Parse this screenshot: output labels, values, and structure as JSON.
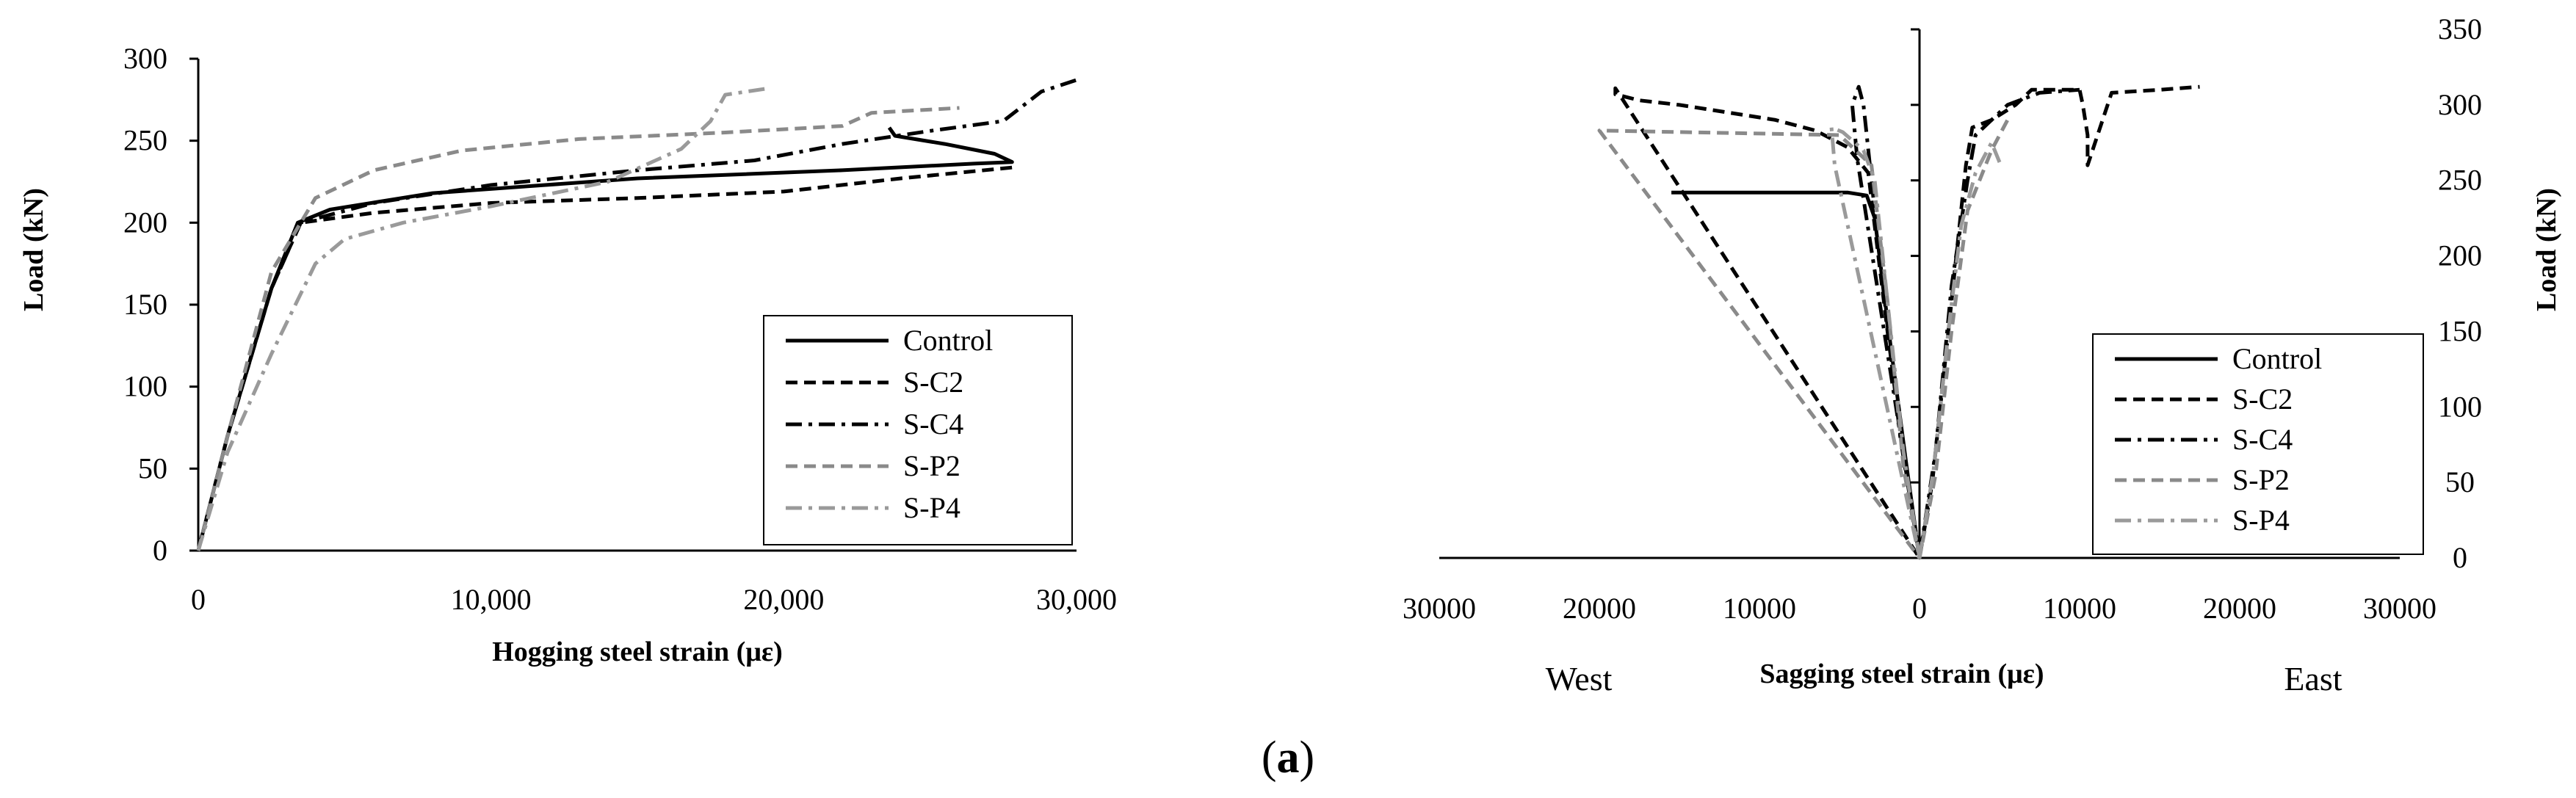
{
  "caption": {
    "open": "(",
    "letter": "a",
    "close": ")"
  },
  "chart_data": [
    {
      "type": "line",
      "title": "",
      "xlabel": "Hogging steel strain (με)",
      "ylabel": "Load (kN)",
      "xlim": [
        0,
        30000
      ],
      "ylim": [
        0,
        300
      ],
      "xticks": [
        "0",
        "10,000",
        "20,000",
        "30,000"
      ],
      "yticks": [
        "0",
        "50",
        "100",
        "150",
        "200",
        "250",
        "300"
      ],
      "grid": false,
      "legend_position": "bottom-right",
      "series": [
        {
          "name": "Control",
          "style": "solid",
          "color": "#000000",
          "x": [
            0,
            1000,
            2500,
            3400,
            4500,
            8000,
            15000,
            22000,
            26500,
            27800,
            27200,
            25500,
            23800,
            23600
          ],
          "y": [
            0,
            70,
            160,
            200,
            208,
            218,
            227,
            232,
            236,
            237,
            242,
            248,
            253,
            258
          ]
        },
        {
          "name": "S-C2",
          "style": "dashed",
          "color": "#000000",
          "x": [
            0,
            1000,
            2500,
            3500,
            6000,
            10000,
            15000,
            20000,
            24000,
            28000
          ],
          "y": [
            0,
            70,
            160,
            200,
            206,
            212,
            215,
            219,
            227,
            234
          ]
        },
        {
          "name": "S-C4",
          "style": "dashdot",
          "color": "#000000",
          "x": [
            0,
            1000,
            2500,
            3500,
            6000,
            10000,
            15000,
            19000,
            22000,
            25000,
            27500,
            28800,
            30000
          ],
          "y": [
            0,
            70,
            160,
            200,
            212,
            223,
            232,
            238,
            248,
            256,
            262,
            280,
            287
          ]
        },
        {
          "name": "S-P2",
          "style": "dashed",
          "color": "#8a8a8a",
          "x": [
            0,
            1000,
            2500,
            4000,
            6000,
            9000,
            13000,
            18000,
            22000,
            23000,
            26000
          ],
          "y": [
            0,
            70,
            170,
            215,
            232,
            244,
            251,
            255,
            259,
            267,
            270
          ]
        },
        {
          "name": "S-P4",
          "style": "dashdot",
          "color": "#9a9a9a",
          "x": [
            0,
            1000,
            2500,
            4000,
            5000,
            7000,
            10000,
            14000,
            16500,
            17500,
            18000,
            19500
          ],
          "y": [
            0,
            60,
            120,
            175,
            190,
            200,
            210,
            225,
            245,
            262,
            278,
            282
          ]
        }
      ]
    },
    {
      "type": "line",
      "title": "",
      "xlabel": "Sagging steel strain (με)",
      "ylabel": "Load (kN)",
      "xlim": [
        -30000,
        30000
      ],
      "ylim": [
        0,
        350
      ],
      "xticks": [
        "30000",
        "20000",
        "10000",
        "0",
        "10000",
        "20000",
        "30000"
      ],
      "yticks": [
        "0",
        "50",
        "100",
        "150",
        "200",
        "250",
        "300",
        "350"
      ],
      "side_labels": {
        "left": "West",
        "right": "East"
      },
      "grid": false,
      "legend_position": "bottom-right",
      "series": [
        {
          "name": "Control",
          "style": "solid",
          "color": "#000000",
          "x": [
            0,
            -800,
            -1800,
            -2800,
            -3300,
            -4500,
            -10000,
            -15500
          ],
          "y": [
            0,
            60,
            140,
            225,
            240,
            242,
            242,
            242
          ]
        },
        {
          "name": "S-C2",
          "style": "dashed",
          "color": "#000000",
          "x": [
            0,
            -900,
            -2000,
            -3200,
            -4500,
            -6500,
            -9000,
            -12000,
            -15000,
            -17500,
            -19000,
            -19000,
            0,
            800,
            1600,
            2400,
            2900,
            3300,
            4500,
            6000,
            7000,
            8500,
            10000,
            10200,
            10500,
            10500,
            12000,
            15000,
            17500
          ],
          "y": [
            0,
            60,
            150,
            255,
            272,
            283,
            290,
            295,
            300,
            303,
            307,
            311,
            0,
            50,
            130,
            210,
            260,
            285,
            290,
            300,
            310,
            310,
            310,
            300,
            280,
            260,
            308,
            310,
            312
          ]
        },
        {
          "name": "S-C4",
          "style": "dashdot",
          "color": "#000000",
          "x": [
            0,
            -1200,
            -2500,
            -3300,
            -3500,
            -3800,
            -4200,
            -3900,
            0,
            1000,
            2000,
            3000,
            3500,
            5500,
            7500,
            10000
          ],
          "y": [
            0,
            80,
            200,
            280,
            300,
            312,
            300,
            265,
            0,
            70,
            180,
            250,
            280,
            300,
            308,
            310
          ]
        },
        {
          "name": "S-P2",
          "style": "dashed",
          "color": "#8a8a8a",
          "x": [
            0,
            -1000,
            -2000,
            -3000,
            -5000,
            -10000,
            -15000,
            -20000,
            0,
            1000,
            2000,
            3000,
            4500,
            5500
          ],
          "y": [
            0,
            60,
            170,
            260,
            280,
            281,
            282,
            283,
            0,
            55,
            150,
            230,
            270,
            290
          ]
        },
        {
          "name": "S-P4",
          "style": "dashdot",
          "color": "#9a9a9a",
          "x": [
            0,
            -1000,
            -2000,
            -2800,
            -3500,
            -4800,
            -5500,
            -5300,
            0,
            900,
            1800,
            2600,
            3500,
            4500,
            5000
          ],
          "y": [
            0,
            70,
            170,
            250,
            270,
            282,
            285,
            260,
            0,
            60,
            150,
            220,
            255,
            275,
            262
          ]
        }
      ]
    }
  ]
}
